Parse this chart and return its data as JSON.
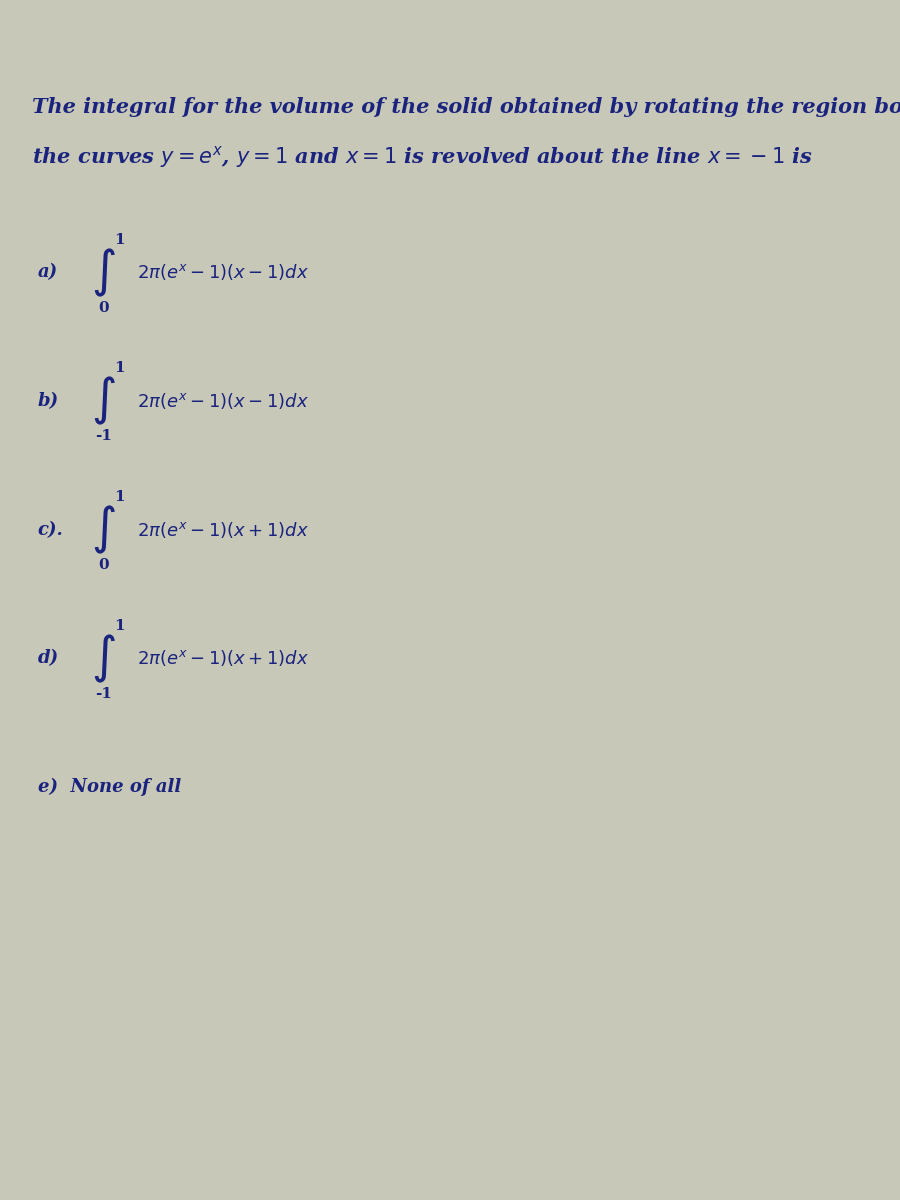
{
  "bg_color": "#c8c8b8",
  "text_color": "#1a237e",
  "title_line1": "The integral for the volume of the solid obtained by rotating the region bounded by",
  "title_line2": "the curves $y = e^x$, $y = 1$ and $x = 1$ is revolved about the line $x = -1$ is",
  "options": [
    {
      "label": "a)",
      "lower": "0",
      "upper": "1",
      "integrand": "$2\\pi(e^x - 1)(x - 1)dx$"
    },
    {
      "label": "b)",
      "lower": "-1",
      "upper": "1",
      "integrand": "$2\\pi(e^x - 1)(x - 1)dx$"
    },
    {
      "label": "c).",
      "lower": "0",
      "upper": "1",
      "integrand": "$2\\pi(e^x - 1)(x + 1)dx$"
    },
    {
      "label": "d)",
      "lower": "-1",
      "upper": "1",
      "integrand": "$2\\pi(e^x - 1)(x + 1)dx$"
    }
  ],
  "last_option": "e)  None of all",
  "title_fontsize": 15,
  "option_fontsize": 13,
  "label_fontsize": 13
}
